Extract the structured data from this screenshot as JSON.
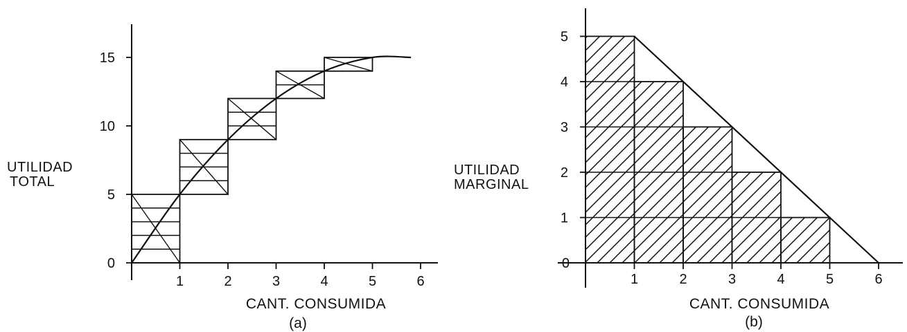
{
  "chart_data": [
    {
      "type": "line",
      "panel": "(a)",
      "xlabel": "CANT. CONSUMIDA",
      "ylabel_lines": [
        "UTILIDAD",
        "TOTAL"
      ],
      "x_ticks": [
        1,
        2,
        3,
        4,
        5,
        6
      ],
      "y_ticks": [
        0,
        5,
        10,
        15
      ],
      "xlim": [
        0,
        6.5
      ],
      "ylim": [
        0,
        17.5
      ],
      "step_values": [
        0,
        5,
        9,
        12,
        14,
        15
      ],
      "curve": {
        "x": [
          0,
          1,
          2,
          3,
          4,
          5,
          5.8
        ],
        "y": [
          0,
          5,
          9,
          12,
          14,
          15,
          15
        ]
      }
    },
    {
      "type": "bar",
      "panel": "(b)",
      "xlabel": "CANT. CONSUMIDA",
      "ylabel_lines": [
        "UTILIDAD",
        "MARGINAL"
      ],
      "x_ticks": [
        1,
        2,
        3,
        4,
        5,
        6
      ],
      "y_ticks": [
        0,
        1,
        2,
        3,
        4,
        5
      ],
      "xlim": [
        0,
        6.6
      ],
      "ylim": [
        0,
        5.5
      ],
      "bars": [
        {
          "x0": 0,
          "x1": 1,
          "value": 5
        },
        {
          "x0": 1,
          "x1": 2,
          "value": 4
        },
        {
          "x0": 2,
          "x1": 3,
          "value": 3
        },
        {
          "x0": 3,
          "x1": 4,
          "value": 2
        },
        {
          "x0": 4,
          "x1": 5,
          "value": 1
        }
      ],
      "line": {
        "x": [
          1,
          6
        ],
        "y": [
          5,
          0
        ]
      }
    }
  ]
}
